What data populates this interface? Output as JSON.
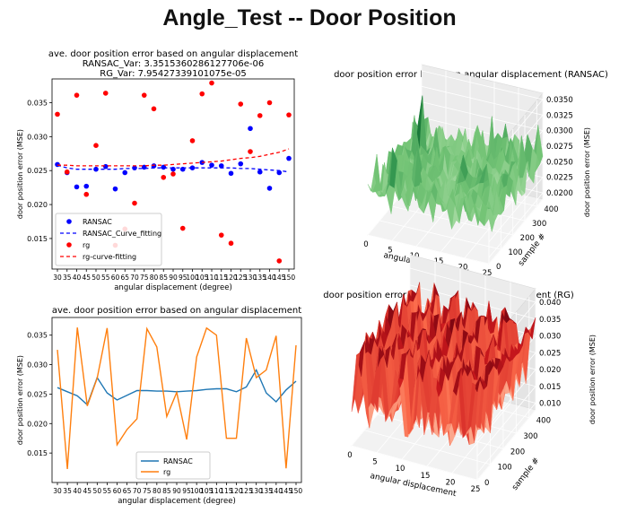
{
  "slide": {
    "title": "Angle_Test -- Door Position"
  },
  "chart_data": [
    {
      "type": "scatter",
      "title": "ave. door position error based on angular displacement",
      "subtitle_lines": [
        "RANSAC_Var: 3.3515360286127706e-06",
        "RG_Var: 7.95427339101075e-05"
      ],
      "xlabel": "angular displacement (degree)",
      "ylabel": "door position error (MSE)",
      "categories": [
        "30",
        "35",
        "40",
        "45",
        "50",
        "55",
        "60",
        "65",
        "70",
        "75",
        "80",
        "85",
        "90",
        "95",
        "100",
        "105",
        "110",
        "115",
        "120",
        "125",
        "130",
        "135",
        "140",
        "145",
        "150"
      ],
      "ylim": [
        0.0105,
        0.0385
      ],
      "yticks": [
        "0.015",
        "0.020",
        "0.025",
        "0.030",
        "0.035"
      ],
      "legend": "lower-left",
      "series": [
        {
          "name": "RANSAC",
          "kind": "points",
          "color": "#0000ff",
          "values": [
            0.0259,
            0.0247,
            0.0226,
            0.0227,
            0.0252,
            0.0256,
            0.0223,
            0.0247,
            0.0254,
            0.0255,
            0.0257,
            0.0255,
            0.0252,
            0.0252,
            0.0254,
            0.0262,
            0.0258,
            0.0257,
            0.0246,
            0.026,
            0.0312,
            0.0248,
            0.0224,
            0.0247,
            0.0268
          ]
        },
        {
          "name": "RANSAC_Curve_fitting",
          "kind": "dashed",
          "color": "#0000ff",
          "values": [
            0.0258,
            0.0254,
            0.0252,
            0.0252,
            0.0252,
            0.0252,
            0.0252,
            0.0253,
            0.0253,
            0.0253,
            0.0254,
            0.0254,
            0.0254,
            0.0254,
            0.0254,
            0.0254,
            0.0254,
            0.0254,
            0.0254,
            0.0253,
            0.0253,
            0.0252,
            0.0251,
            0.025,
            0.0248
          ]
        },
        {
          "name": "rg",
          "kind": "points",
          "color": "#ff0000",
          "values": [
            0.0333,
            0.0248,
            0.0361,
            0.0215,
            0.0287,
            0.0364,
            0.014,
            0.0164,
            0.0202,
            0.0361,
            0.0341,
            0.024,
            0.0245,
            0.0165,
            0.0294,
            0.0363,
            0.0379,
            0.0155,
            0.0143,
            0.0348,
            0.0278,
            0.0331,
            0.035,
            0.0117,
            0.0332
          ]
        },
        {
          "name": "rg-curve-fitting",
          "kind": "dashed",
          "color": "#ff0000",
          "values": [
            0.0258,
            0.0258,
            0.0257,
            0.0257,
            0.0257,
            0.0257,
            0.0257,
            0.0257,
            0.0257,
            0.0257,
            0.0258,
            0.0258,
            0.0259,
            0.026,
            0.0261,
            0.0262,
            0.0263,
            0.0264,
            0.0266,
            0.0268,
            0.0269,
            0.0271,
            0.0274,
            0.0277,
            0.0282
          ]
        }
      ]
    },
    {
      "type": "line",
      "title": "ave. door position error based on angular displacement",
      "xlabel": "angular displacement (degree)",
      "ylabel": "door position error (MSE)",
      "categories": [
        "30",
        "35",
        "40",
        "45",
        "50",
        "55",
        "60",
        "65",
        "70",
        "75",
        "80",
        "85",
        "90",
        "95",
        "100",
        "105",
        "110",
        "115",
        "120",
        "125",
        "130",
        "135",
        "140",
        "145",
        "150"
      ],
      "ylim": [
        0.01,
        0.038
      ],
      "yticks": [
        "0.015",
        "0.020",
        "0.025",
        "0.030",
        "0.035"
      ],
      "legend": "lower-center",
      "series": [
        {
          "name": "RANSAC",
          "color": "#1f77b4",
          "values": [
            0.0261,
            0.0254,
            0.0247,
            0.0232,
            0.0278,
            0.0252,
            0.024,
            0.0248,
            0.0256,
            0.0256,
            0.0255,
            0.0255,
            0.0254,
            0.0255,
            0.0256,
            0.0258,
            0.0259,
            0.0259,
            0.0254,
            0.0262,
            0.0291,
            0.0252,
            0.0237,
            0.0257,
            0.0272
          ]
        },
        {
          "name": "rg",
          "color": "#ff7f0e",
          "values": [
            0.0325,
            0.0123,
            0.0363,
            0.023,
            0.0277,
            0.0362,
            0.0164,
            0.019,
            0.0208,
            0.0361,
            0.033,
            0.0212,
            0.0253,
            0.0173,
            0.0313,
            0.0362,
            0.035,
            0.0175,
            0.0175,
            0.0345,
            0.0278,
            0.0291,
            0.0349,
            0.0124,
            0.0333
          ]
        }
      ]
    },
    {
      "type": "area",
      "surface": "3d",
      "title": "door position error based on angular displacement (RANSAC)",
      "xlabel": "angular displacement",
      "ylabel": "sample #",
      "zlabel": "door position error (MSE)",
      "xticks": [
        "0",
        "5",
        "10",
        "15",
        "20",
        "25"
      ],
      "yticks": [
        "0",
        "100",
        "200",
        "300",
        "400"
      ],
      "zticks": [
        "0.0200",
        "0.0225",
        "0.0250",
        "0.0275",
        "0.0300",
        "0.0325",
        "0.0350"
      ],
      "zlim": [
        0.019,
        0.036
      ],
      "colormap": "greens"
    },
    {
      "type": "area",
      "surface": "3d",
      "title": "door position error based on angular displacement (RG)",
      "xlabel": "angular displacement",
      "ylabel": "sample #",
      "zlabel": "door position error (MSE)",
      "xticks": [
        "0",
        "5",
        "10",
        "15",
        "20",
        "25"
      ],
      "yticks": [
        "0",
        "100",
        "200",
        "300",
        "400"
      ],
      "zticks": [
        "0.010",
        "0.015",
        "0.020",
        "0.025",
        "0.030",
        "0.035",
        "0.040"
      ],
      "zlim": [
        0.008,
        0.044
      ],
      "colormap": "reds"
    }
  ]
}
